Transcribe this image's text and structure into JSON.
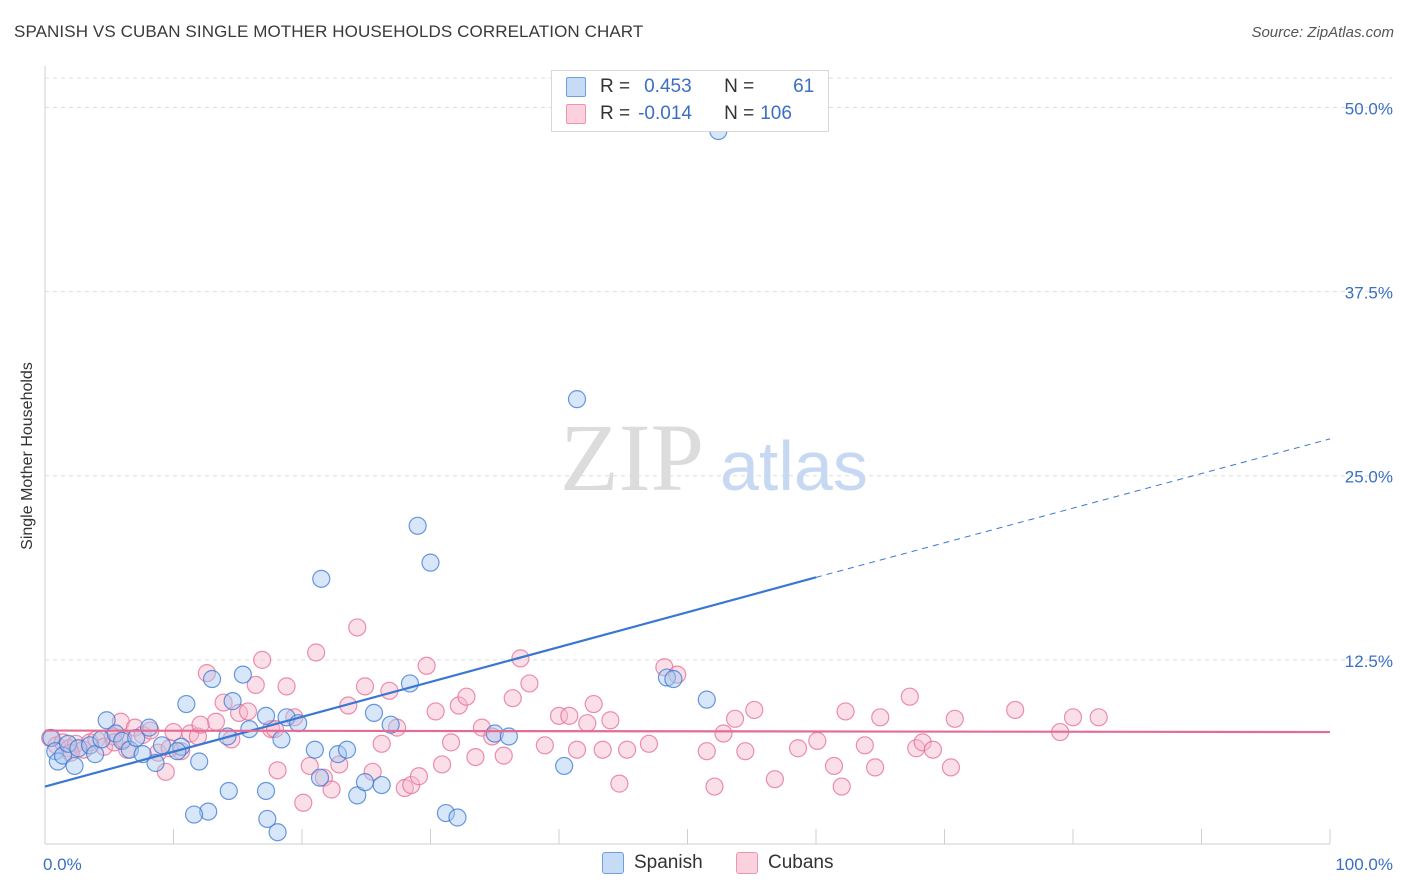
{
  "header": {
    "title": "SPANISH VS CUBAN SINGLE MOTHER HOUSEHOLDS CORRELATION CHART",
    "source": "Source: ZipAtlas.com"
  },
  "watermark": {
    "zip": "ZIP",
    "atlas": "atlas"
  },
  "legend": {
    "spanish": {
      "r_label": "R =",
      "r_value": "0.453",
      "n_label": "N =",
      "n_value": "61",
      "color": "#a7c7f0"
    },
    "cubans": {
      "r_label": "R =",
      "r_value": "-0.014",
      "n_label": "N =",
      "n_value": "106",
      "color": "#f7b8cc"
    }
  },
  "bottom_legend": {
    "spanish": "Spanish",
    "cubans": "Cubans"
  },
  "chart_data": {
    "type": "scatter",
    "title": "SPANISH VS CUBAN SINGLE MOTHER HOUSEHOLDS CORRELATION CHART",
    "xlabel": "",
    "ylabel": "Single Mother Households",
    "xlim": [
      0,
      100
    ],
    "ylim": [
      0,
      52
    ],
    "x_tick_labels": [
      {
        "value": 0,
        "label": "0.0%"
      },
      {
        "value": 100,
        "label": "100.0%"
      }
    ],
    "y_tick_labels": [
      {
        "value": 12.5,
        "label": "12.5%"
      },
      {
        "value": 25.0,
        "label": "25.0%"
      },
      {
        "value": 37.5,
        "label": "37.5%"
      },
      {
        "value": 50.0,
        "label": "50.0%"
      }
    ],
    "series": [
      {
        "name": "Spanish",
        "color": "#3a77d2",
        "fill": "#a7c7f0",
        "r": 0.453,
        "n": 61,
        "trend": {
          "x0": 0,
          "y0": 3.9,
          "x1": 60,
          "y1": 18.1,
          "dash_to_x": 100,
          "dash_to_y": 27.5
        },
        "points": [
          [
            0.5,
            7.2
          ],
          [
            0.8,
            6.3
          ],
          [
            1.0,
            5.6
          ],
          [
            1.4,
            6.0
          ],
          [
            1.8,
            6.8
          ],
          [
            2.3,
            5.3
          ],
          [
            2.6,
            6.5
          ],
          [
            3.5,
            6.7
          ],
          [
            3.9,
            6.1
          ],
          [
            4.4,
            7.1
          ],
          [
            4.8,
            8.4
          ],
          [
            5.5,
            7.5
          ],
          [
            6.0,
            7.0
          ],
          [
            6.6,
            6.4
          ],
          [
            7.1,
            7.2
          ],
          [
            7.6,
            6.1
          ],
          [
            8.1,
            7.9
          ],
          [
            8.6,
            5.5
          ],
          [
            9.1,
            6.7
          ],
          [
            10.6,
            6.6
          ],
          [
            11.0,
            9.5
          ],
          [
            12.0,
            5.6
          ],
          [
            13.0,
            11.2
          ],
          [
            14.2,
            7.3
          ],
          [
            14.6,
            9.7
          ],
          [
            15.4,
            11.5
          ],
          [
            15.9,
            7.8
          ],
          [
            17.2,
            8.7
          ],
          [
            18.4,
            7.1
          ],
          [
            18.8,
            8.6
          ],
          [
            19.7,
            8.2
          ],
          [
            21.0,
            6.4
          ],
          [
            21.4,
            4.5
          ],
          [
            21.5,
            18.0
          ],
          [
            22.8,
            6.1
          ],
          [
            23.5,
            6.4
          ],
          [
            24.3,
            3.3
          ],
          [
            24.9,
            4.2
          ],
          [
            25.6,
            8.9
          ],
          [
            26.2,
            4.0
          ],
          [
            26.9,
            8.1
          ],
          [
            28.4,
            10.9
          ],
          [
            29.0,
            21.6
          ],
          [
            30.0,
            19.1
          ],
          [
            31.2,
            2.1
          ],
          [
            32.1,
            1.8
          ],
          [
            35.0,
            7.5
          ],
          [
            36.1,
            7.3
          ],
          [
            40.4,
            5.3
          ],
          [
            41.4,
            30.2
          ],
          [
            48.4,
            11.3
          ],
          [
            48.9,
            11.2
          ],
          [
            51.5,
            9.8
          ],
          [
            52.4,
            48.4
          ],
          [
            18.1,
            0.8
          ],
          [
            17.3,
            1.7
          ],
          [
            14.3,
            3.6
          ],
          [
            12.7,
            2.2
          ],
          [
            11.6,
            2.0
          ],
          [
            17.2,
            3.6
          ],
          [
            10.3,
            6.3
          ]
        ]
      },
      {
        "name": "Cubans",
        "color": "#e56b93",
        "fill": "#f7b8cc",
        "r": -0.014,
        "n": 106,
        "trend": {
          "x0": 0,
          "y0": 7.7,
          "x1": 100,
          "y1": 7.6
        },
        "points": [
          [
            0.4,
            7.2
          ],
          [
            0.9,
            6.7
          ],
          [
            1.4,
            6.9
          ],
          [
            1.9,
            6.5
          ],
          [
            2.4,
            6.8
          ],
          [
            3.0,
            6.4
          ],
          [
            3.5,
            6.9
          ],
          [
            4.0,
            7.1
          ],
          [
            4.6,
            6.6
          ],
          [
            5.3,
            7.3
          ],
          [
            5.9,
            8.3
          ],
          [
            6.4,
            6.4
          ],
          [
            7.0,
            7.9
          ],
          [
            7.6,
            7.4
          ],
          [
            8.2,
            7.7
          ],
          [
            8.8,
            6.2
          ],
          [
            9.4,
            4.9
          ],
          [
            10.0,
            7.6
          ],
          [
            10.6,
            6.3
          ],
          [
            11.3,
            7.5
          ],
          [
            11.9,
            7.3
          ],
          [
            12.6,
            11.6
          ],
          [
            13.3,
            8.3
          ],
          [
            13.9,
            9.6
          ],
          [
            14.5,
            7.1
          ],
          [
            15.1,
            8.9
          ],
          [
            15.8,
            9.0
          ],
          [
            16.4,
            10.8
          ],
          [
            16.9,
            12.5
          ],
          [
            17.6,
            7.8
          ],
          [
            18.1,
            5.0
          ],
          [
            18.8,
            10.7
          ],
          [
            19.4,
            8.6
          ],
          [
            20.1,
            2.8
          ],
          [
            20.6,
            5.3
          ],
          [
            21.1,
            13.0
          ],
          [
            21.7,
            4.5
          ],
          [
            22.3,
            3.7
          ],
          [
            22.9,
            5.4
          ],
          [
            23.6,
            9.4
          ],
          [
            24.3,
            14.7
          ],
          [
            24.9,
            10.7
          ],
          [
            25.5,
            4.9
          ],
          [
            26.2,
            6.8
          ],
          [
            26.8,
            10.4
          ],
          [
            27.4,
            7.9
          ],
          [
            28.0,
            3.8
          ],
          [
            28.5,
            4.0
          ],
          [
            29.1,
            4.6
          ],
          [
            29.7,
            12.1
          ],
          [
            30.4,
            9.0
          ],
          [
            30.9,
            5.4
          ],
          [
            31.6,
            6.9
          ],
          [
            32.2,
            9.4
          ],
          [
            32.8,
            10.0
          ],
          [
            33.5,
            5.9
          ],
          [
            34.0,
            7.9
          ],
          [
            34.8,
            7.3
          ],
          [
            35.7,
            6.0
          ],
          [
            36.4,
            9.9
          ],
          [
            37.0,
            12.6
          ],
          [
            37.7,
            10.9
          ],
          [
            38.9,
            6.7
          ],
          [
            40.0,
            8.7
          ],
          [
            40.8,
            8.7
          ],
          [
            41.4,
            6.4
          ],
          [
            42.2,
            8.2
          ],
          [
            42.7,
            9.5
          ],
          [
            43.4,
            6.4
          ],
          [
            44.0,
            8.4
          ],
          [
            44.7,
            4.1
          ],
          [
            45.3,
            6.4
          ],
          [
            47.0,
            6.8
          ],
          [
            48.2,
            12.0
          ],
          [
            49.2,
            11.5
          ],
          [
            51.5,
            6.3
          ],
          [
            52.1,
            3.9
          ],
          [
            52.8,
            7.5
          ],
          [
            53.7,
            8.5
          ],
          [
            54.5,
            6.3
          ],
          [
            55.2,
            9.1
          ],
          [
            56.8,
            4.4
          ],
          [
            58.6,
            6.5
          ],
          [
            60.1,
            7.0
          ],
          [
            61.4,
            5.3
          ],
          [
            62.0,
            3.9
          ],
          [
            62.3,
            9.0
          ],
          [
            63.8,
            6.7
          ],
          [
            64.6,
            5.2
          ],
          [
            65.0,
            8.6
          ],
          [
            67.3,
            10.0
          ],
          [
            67.8,
            6.5
          ],
          [
            68.3,
            6.9
          ],
          [
            69.1,
            6.4
          ],
          [
            70.5,
            5.2
          ],
          [
            70.8,
            8.5
          ],
          [
            75.5,
            9.1
          ],
          [
            79.0,
            7.6
          ],
          [
            80.0,
            8.6
          ],
          [
            82.0,
            8.6
          ],
          [
            5.4,
            6.9
          ],
          [
            6.1,
            7.1
          ],
          [
            9.7,
            6.5
          ],
          [
            12.1,
            8.1
          ],
          [
            17.9,
            7.8
          ],
          [
            2.0,
            6.2
          ]
        ]
      }
    ],
    "grid": true
  }
}
